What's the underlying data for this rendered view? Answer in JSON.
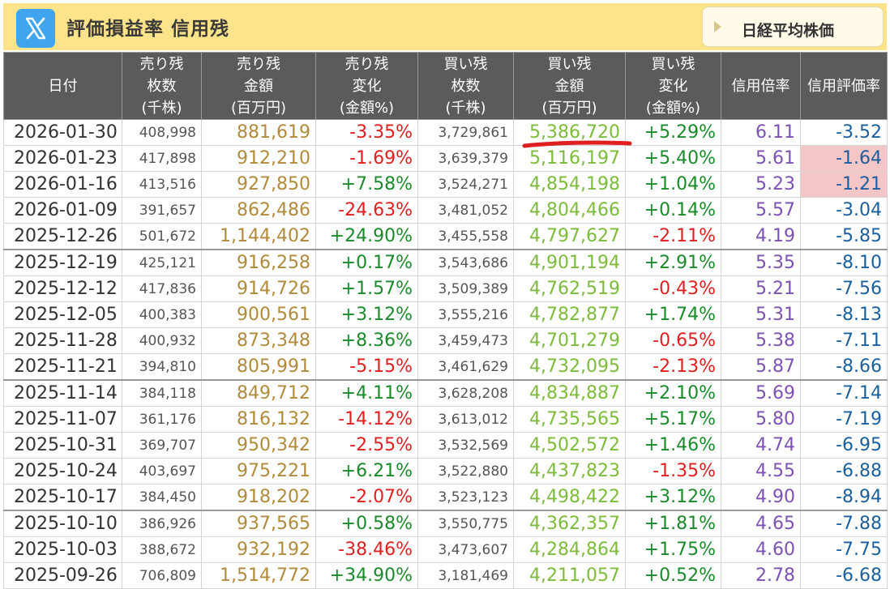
{
  "header": {
    "title": "評価損益率 信用残",
    "nikkei_button": "日経平均株価"
  },
  "colors": {
    "header_bg": "#fde38a",
    "table_header_bg": "#5b5b5b",
    "sell_amount": "#b18a3a",
    "buy_amount": "#7dbb3a",
    "positive": "#1a8a2a",
    "negative": "#e02020",
    "ratio": "#7c52b4",
    "eval_rate": "#1a5f9e",
    "highlight": "#f4c6c8",
    "annotation": "#e02020"
  },
  "table": {
    "columns": [
      {
        "lines": [
          "日付"
        ]
      },
      {
        "lines": [
          "売り残",
          "枚数",
          "(千株)"
        ]
      },
      {
        "lines": [
          "売り残",
          "金額",
          "(百万円)"
        ]
      },
      {
        "lines": [
          "売り残",
          "変化",
          "(金額%)"
        ]
      },
      {
        "lines": [
          "買い残",
          "枚数",
          "(千株)"
        ]
      },
      {
        "lines": [
          "買い残",
          "金額",
          "(百万円)"
        ]
      },
      {
        "lines": [
          "買い残",
          "変化",
          "(金額%)"
        ]
      },
      {
        "lines": [
          "信用倍率"
        ]
      },
      {
        "lines": [
          "信用評価率"
        ]
      }
    ],
    "rows": [
      {
        "date": "2026-01-30",
        "sell_qty": "408,998",
        "sell_amt": "881,619",
        "sell_chg": "-3.35%",
        "buy_qty": "3,729,861",
        "buy_amt": "5,386,720",
        "buy_chg": "+5.29%",
        "ratio": "6.11",
        "eval": "-3.52"
      },
      {
        "date": "2026-01-23",
        "sell_qty": "417,898",
        "sell_amt": "912,210",
        "sell_chg": "-1.69%",
        "buy_qty": "3,639,379",
        "buy_amt": "5,116,197",
        "buy_chg": "+5.40%",
        "ratio": "5.61",
        "eval": "-1.64",
        "eval_hl": true
      },
      {
        "date": "2026-01-16",
        "sell_qty": "413,516",
        "sell_amt": "927,850",
        "sell_chg": "+7.58%",
        "buy_qty": "3,524,271",
        "buy_amt": "4,854,198",
        "buy_chg": "+1.04%",
        "ratio": "5.23",
        "eval": "-1.21",
        "eval_hl": true
      },
      {
        "date": "2026-01-09",
        "sell_qty": "391,657",
        "sell_amt": "862,486",
        "sell_chg": "-24.63%",
        "buy_qty": "3,481,052",
        "buy_amt": "4,804,466",
        "buy_chg": "+0.14%",
        "ratio": "5.57",
        "eval": "-3.04"
      },
      {
        "date": "2025-12-26",
        "sell_qty": "501,672",
        "sell_amt": "1,144,402",
        "sell_chg": "+24.90%",
        "buy_qty": "3,455,558",
        "buy_amt": "4,797,627",
        "buy_chg": "-2.11%",
        "ratio": "4.19",
        "eval": "-5.85"
      },
      {
        "date": "2025-12-19",
        "sell_qty": "425,121",
        "sell_amt": "916,258",
        "sell_chg": "+0.17%",
        "buy_qty": "3,543,686",
        "buy_amt": "4,901,194",
        "buy_chg": "+2.91%",
        "ratio": "5.35",
        "eval": "-8.10",
        "sep": true
      },
      {
        "date": "2025-12-12",
        "sell_qty": "417,836",
        "sell_amt": "914,726",
        "sell_chg": "+1.57%",
        "buy_qty": "3,509,389",
        "buy_amt": "4,762,519",
        "buy_chg": "-0.43%",
        "ratio": "5.21",
        "eval": "-7.56"
      },
      {
        "date": "2025-12-05",
        "sell_qty": "400,383",
        "sell_amt": "900,561",
        "sell_chg": "+3.12%",
        "buy_qty": "3,555,216",
        "buy_amt": "4,782,877",
        "buy_chg": "+1.74%",
        "ratio": "5.31",
        "eval": "-8.13"
      },
      {
        "date": "2025-11-28",
        "sell_qty": "400,932",
        "sell_amt": "873,348",
        "sell_chg": "+8.36%",
        "buy_qty": "3,459,473",
        "buy_amt": "4,701,279",
        "buy_chg": "-0.65%",
        "ratio": "5.38",
        "eval": "-7.11"
      },
      {
        "date": "2025-11-21",
        "sell_qty": "394,810",
        "sell_amt": "805,991",
        "sell_chg": "-5.15%",
        "buy_qty": "3,461,629",
        "buy_amt": "4,732,095",
        "buy_chg": "-2.13%",
        "ratio": "5.87",
        "eval": "-8.66"
      },
      {
        "date": "2025-11-14",
        "sell_qty": "384,118",
        "sell_amt": "849,712",
        "sell_chg": "+4.11%",
        "buy_qty": "3,628,208",
        "buy_amt": "4,834,887",
        "buy_chg": "+2.10%",
        "ratio": "5.69",
        "eval": "-7.14",
        "sep": true
      },
      {
        "date": "2025-11-07",
        "sell_qty": "361,176",
        "sell_amt": "816,132",
        "sell_chg": "-14.12%",
        "buy_qty": "3,613,012",
        "buy_amt": "4,735,565",
        "buy_chg": "+5.17%",
        "ratio": "5.80",
        "eval": "-7.19"
      },
      {
        "date": "2025-10-31",
        "sell_qty": "369,707",
        "sell_amt": "950,342",
        "sell_chg": "-2.55%",
        "buy_qty": "3,532,569",
        "buy_amt": "4,502,572",
        "buy_chg": "+1.46%",
        "ratio": "4.74",
        "eval": "-6.95"
      },
      {
        "date": "2025-10-24",
        "sell_qty": "403,697",
        "sell_amt": "975,221",
        "sell_chg": "+6.21%",
        "buy_qty": "3,522,880",
        "buy_amt": "4,437,823",
        "buy_chg": "-1.35%",
        "ratio": "4.55",
        "eval": "-6.88"
      },
      {
        "date": "2025-10-17",
        "sell_qty": "384,450",
        "sell_amt": "918,202",
        "sell_chg": "-2.07%",
        "buy_qty": "3,523,123",
        "buy_amt": "4,498,422",
        "buy_chg": "+3.12%",
        "ratio": "4.90",
        "eval": "-8.94"
      },
      {
        "date": "2025-10-10",
        "sell_qty": "386,926",
        "sell_amt": "937,565",
        "sell_chg": "+0.58%",
        "buy_qty": "3,550,775",
        "buy_amt": "4,362,357",
        "buy_chg": "+1.81%",
        "ratio": "4.65",
        "eval": "-7.88",
        "sep": true
      },
      {
        "date": "2025-10-03",
        "sell_qty": "388,672",
        "sell_amt": "932,192",
        "sell_chg": "-38.46%",
        "buy_qty": "3,473,607",
        "buy_amt": "4,284,864",
        "buy_chg": "+1.75%",
        "ratio": "4.60",
        "eval": "-7.75"
      },
      {
        "date": "2025-09-26",
        "sell_qty": "706,809",
        "sell_amt": "1,514,772",
        "sell_chg": "+34.90%",
        "buy_qty": "3,181,469",
        "buy_amt": "4,211,057",
        "buy_chg": "+0.52%",
        "ratio": "2.78",
        "eval": "-6.68"
      }
    ]
  }
}
